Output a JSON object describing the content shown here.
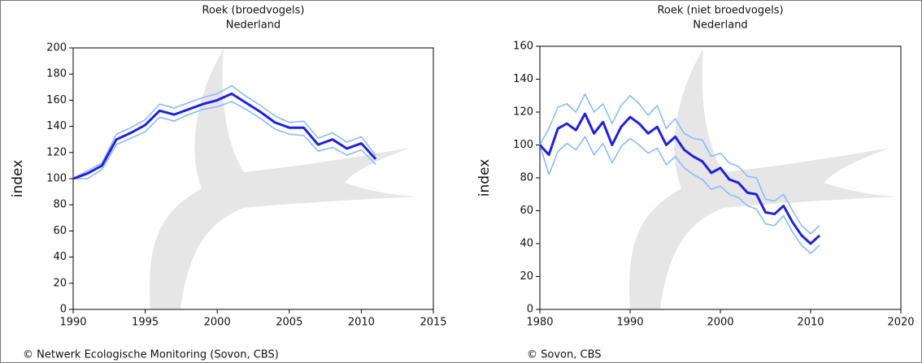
{
  "chart_data": [
    {
      "type": "line",
      "title": "Roek (broedvogels)",
      "subtitle": "Nederland",
      "y_label": "index",
      "x": [
        1990,
        1991,
        1992,
        1993,
        1994,
        1995,
        1996,
        1997,
        1998,
        1999,
        2000,
        2001,
        2002,
        2003,
        2004,
        2005,
        2006,
        2007,
        2008,
        2009,
        2010,
        2011
      ],
      "series": [
        {
          "color": "#88bbff",
          "values": [
            100,
            106,
            112,
            134,
            139,
            145,
            157,
            154,
            158,
            162,
            165,
            171,
            163,
            156,
            148,
            143,
            144,
            131,
            135,
            128,
            132,
            118
          ]
        },
        {
          "color": "#88bbff",
          "values": [
            100,
            100,
            107,
            126,
            131,
            136,
            147,
            144,
            149,
            153,
            155,
            159,
            153,
            146,
            138,
            134,
            133,
            121,
            124,
            118,
            122,
            111
          ]
        },
        {
          "color": "#2020dd",
          "values": [
            100,
            104,
            110,
            130,
            135,
            141,
            152,
            149,
            153,
            157,
            160,
            165,
            158,
            151,
            143,
            139,
            139,
            126,
            130,
            123,
            127,
            115
          ]
        }
      ],
      "xlim": [
        1990,
        2015
      ],
      "ylim": [
        0,
        200
      ],
      "xticks": [
        1990,
        1995,
        2000,
        2005,
        2010,
        2015
      ],
      "yticks": [
        0,
        20,
        40,
        60,
        80,
        100,
        120,
        140,
        160,
        180,
        200
      ]
    },
    {
      "type": "line",
      "title": "Roek (niet broedvogels)",
      "subtitle": "Nederland",
      "y_label": "index",
      "x": [
        1980,
        1981,
        1982,
        1983,
        1984,
        1985,
        1986,
        1987,
        1988,
        1989,
        1990,
        1991,
        1992,
        1993,
        1994,
        1995,
        1996,
        1997,
        1998,
        1999,
        2000,
        2001,
        2002,
        2003,
        2004,
        2005,
        2006,
        2007,
        2008,
        2009,
        2010,
        2011
      ],
      "series": [
        {
          "color": "#88bbff",
          "values": [
            100,
            110,
            123,
            125,
            120,
            131,
            120,
            125,
            113,
            124,
            130,
            125,
            118,
            124,
            110,
            116,
            107,
            104,
            103,
            93,
            95,
            89,
            87,
            81,
            80,
            67,
            66,
            70,
            60,
            51,
            46,
            51
          ]
        },
        {
          "color": "#88bbff",
          "values": [
            100,
            82,
            96,
            101,
            97,
            105,
            94,
            101,
            89,
            99,
            104,
            100,
            95,
            98,
            88,
            93,
            86,
            82,
            79,
            73,
            75,
            70,
            68,
            63,
            61,
            52,
            51,
            57,
            47,
            39,
            34,
            39
          ]
        },
        {
          "color": "#2020dd",
          "values": [
            100,
            94,
            110,
            113,
            109,
            119,
            107,
            114,
            100,
            111,
            117,
            113,
            107,
            111,
            100,
            105,
            97,
            93,
            90,
            83,
            86,
            79,
            77,
            71,
            70,
            59,
            58,
            63,
            53,
            45,
            40,
            45
          ]
        }
      ],
      "xlim": [
        1980,
        2020
      ],
      "ylim": [
        0,
        160
      ],
      "xticks": [
        1980,
        1990,
        2000,
        2010,
        2020
      ],
      "yticks": [
        0,
        20,
        40,
        60,
        80,
        100,
        120,
        140,
        160
      ]
    }
  ],
  "credits": [
    "© Netwerk Ecologische Monitoring (Sovon, CBS)",
    "© Sovon, CBS"
  ]
}
